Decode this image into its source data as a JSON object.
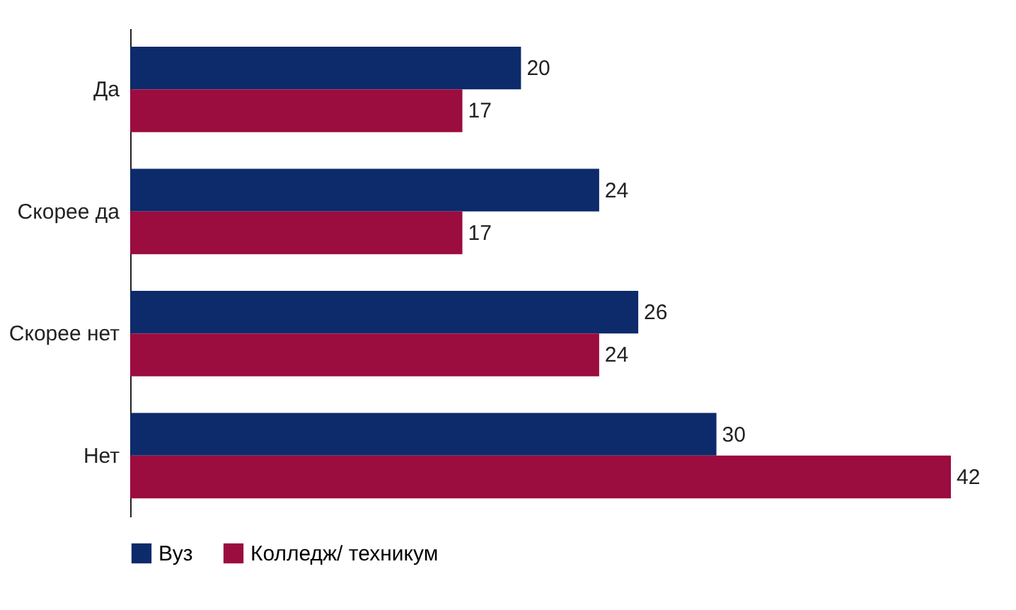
{
  "chart_data": {
    "type": "bar",
    "orientation": "horizontal",
    "categories": [
      "Да",
      "Скорее да",
      "Скорее нет",
      "Нет"
    ],
    "series": [
      {
        "name": "Вуз",
        "color": "#0d2a6b",
        "values": [
          20,
          24,
          26,
          30
        ]
      },
      {
        "name": "Колледж/ техникум",
        "color": "#9b0c3f",
        "values": [
          17,
          17,
          24,
          42
        ]
      }
    ],
    "data_labels": true,
    "legend": "bottom"
  }
}
